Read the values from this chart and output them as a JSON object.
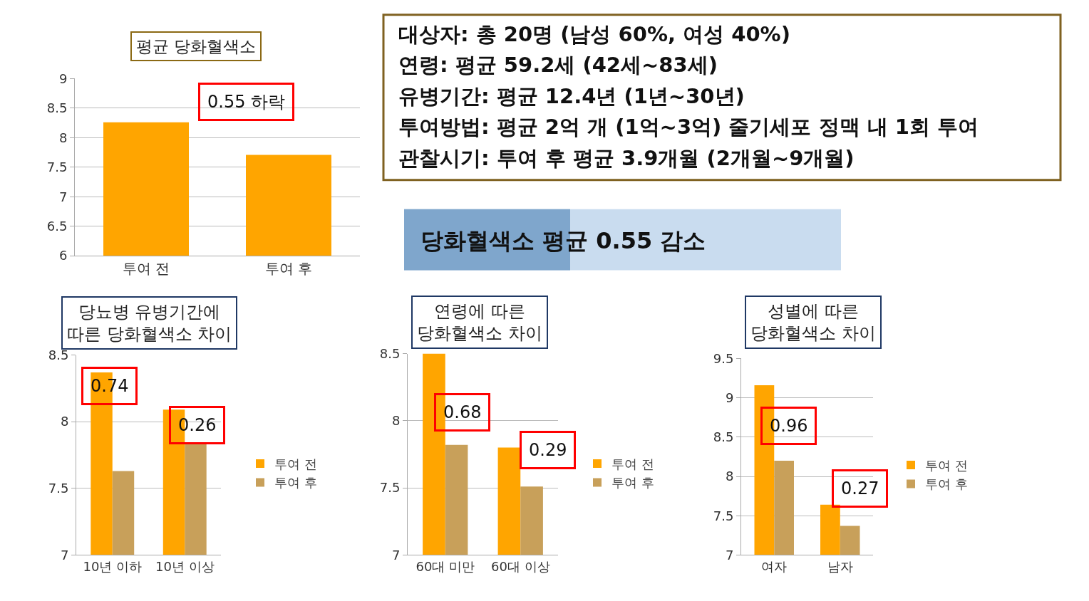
{
  "chart_data": [
    {
      "type": "bar",
      "title": "평균 당화혈색소",
      "categories": [
        "투여 전",
        "투여 후"
      ],
      "values": [
        8.26,
        7.71
      ],
      "color": "#ffa500",
      "ylim": [
        6,
        9
      ],
      "yticks": [
        6,
        6.5,
        7,
        7.5,
        8,
        8.5,
        9
      ],
      "grid": "y",
      "legend": false,
      "annotations": [
        "0.55 하락"
      ]
    },
    {
      "type": "other",
      "annotations": [
        "대상자: 총 20명 (남성 60%, 여성 40%)",
        "연령: 평균 59.2세 (42세~83세)",
        "유병기간: 평균 12.4년 (1년~30년)",
        "투여방법: 평균 2억 개 (1억~3억) 줄기세포 정맥 내 1회 투여",
        "관찰시기: 투여 후 평균 3.9개월 (2개월~9개월)"
      ]
    },
    {
      "type": "other",
      "title": "당화혈색소 평균 0.55 감소"
    },
    {
      "type": "bar",
      "title": "당뇨병 유병기간에\n따른 당화혈색소 차이",
      "categories": [
        "10년 이하",
        "10년 이상"
      ],
      "ylim": [
        7,
        8.5
      ],
      "yticks": [
        7,
        7.5,
        8,
        8.5
      ],
      "grid": "y",
      "legend": "right",
      "annotations": [
        "0.74",
        "0.26"
      ],
      "series": [
        {
          "name": "투여 전",
          "color": "#ffa500",
          "values": [
            8.37,
            8.09
          ]
        },
        {
          "name": "투여 후",
          "color": "#c8a05a",
          "values": [
            7.63,
            7.83
          ]
        }
      ]
    },
    {
      "type": "bar",
      "title": "연령에 따른\n당화혈색소 차이",
      "categories": [
        "60대 미만",
        "60대 이상"
      ],
      "ylim": [
        7,
        8.5
      ],
      "yticks": [
        7,
        7.5,
        8,
        8.5
      ],
      "grid": "y",
      "legend": "right",
      "annotations": [
        "0.68",
        "0.29"
      ],
      "series": [
        {
          "name": "투여 전",
          "color": "#ffa500",
          "values": [
            8.5,
            7.8
          ]
        },
        {
          "name": "투여 후",
          "color": "#c8a05a",
          "values": [
            7.82,
            7.51
          ]
        }
      ]
    },
    {
      "type": "bar",
      "title": "성별에 따른\n당화혈색소 차이",
      "categories": [
        "여자",
        "남자"
      ],
      "ylim": [
        7,
        9.5
      ],
      "yticks": [
        7,
        7.5,
        8,
        8.5,
        9,
        9.5
      ],
      "grid": "y",
      "legend": "right",
      "annotations": [
        "0.96",
        "0.27"
      ],
      "series": [
        {
          "name": "투여 전",
          "color": "#ffa500",
          "values": [
            9.16,
            7.64
          ]
        },
        {
          "name": "투여 후",
          "color": "#c8a05a",
          "values": [
            8.2,
            7.37
          ]
        }
      ]
    }
  ]
}
